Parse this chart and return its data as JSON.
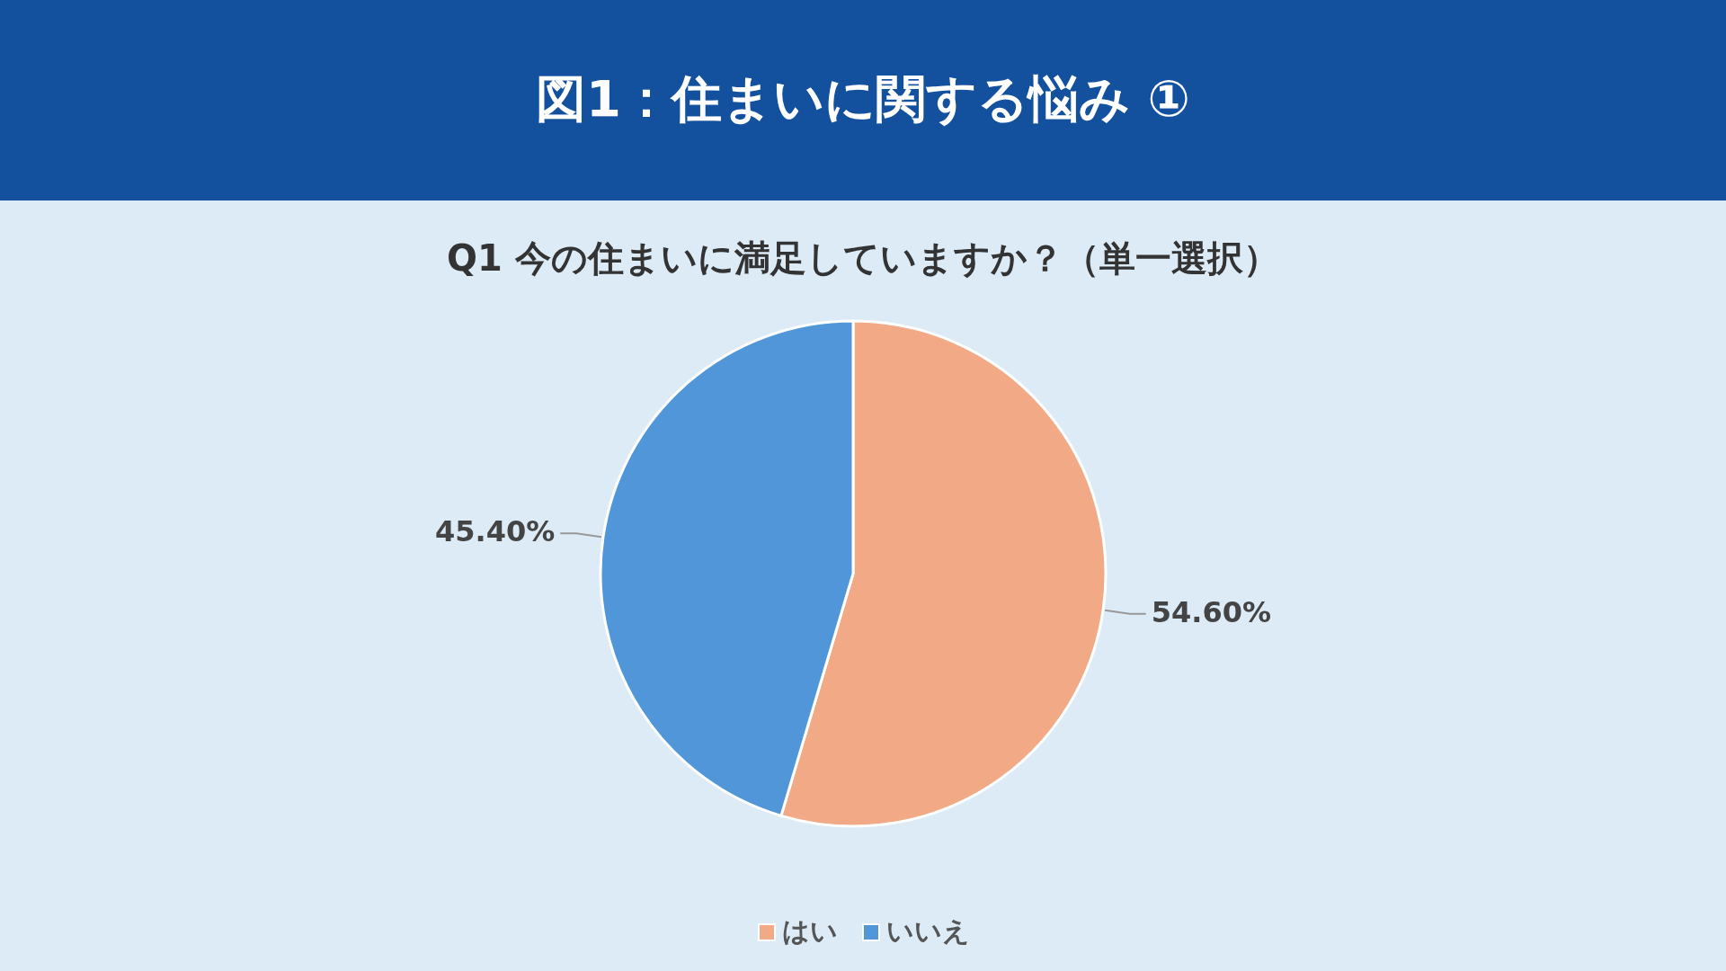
{
  "chart_data": {
    "type": "pie",
    "title": "図1：住まいに関する悩み ①",
    "subtitle": "Q1 今の住まいに満足していますか？（単一選択）",
    "categories": [
      "はい",
      "いいえ"
    ],
    "values": [
      54.6,
      45.4
    ],
    "colors": [
      "#f2a985",
      "#5096d9"
    ],
    "value_labels": [
      "54.60%",
      "45.40%"
    ],
    "legend": "bottom"
  }
}
